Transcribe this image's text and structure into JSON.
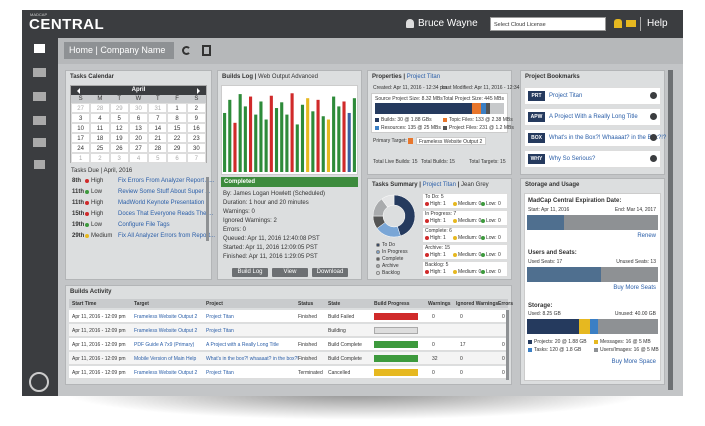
{
  "header": {
    "logo_small": "MADCAP",
    "logo": "CENTRAL",
    "user": "Bruce Wayne",
    "license_select": "Select Cloud License",
    "help": "Help"
  },
  "breadcrumb": {
    "home": "Home",
    "company": "Company Name"
  },
  "tasks_calendar": {
    "title": "Tasks Calendar",
    "month": "April",
    "weekdays": [
      "S",
      "M",
      "T",
      "W",
      "T",
      "F",
      "S"
    ],
    "days": [
      [
        27,
        28,
        29,
        30,
        31,
        1,
        2
      ],
      [
        3,
        4,
        5,
        6,
        7,
        8,
        9
      ],
      [
        10,
        11,
        12,
        13,
        14,
        15,
        16
      ],
      [
        17,
        18,
        19,
        20,
        21,
        22,
        23
      ],
      [
        24,
        25,
        26,
        27,
        28,
        29,
        30
      ],
      [
        1,
        2,
        3,
        4,
        5,
        6,
        7
      ]
    ],
    "tasks_due": "Tasks Due | April, 2016",
    "tasks": [
      {
        "day": "8th",
        "priority": "High",
        "color": "#d02a2a",
        "text": "Fix Errors From Analyzer Report A..."
      },
      {
        "day": "11th",
        "priority": "Low",
        "color": "#3d9a3d",
        "text": "Review Some Stuff About Super ..."
      },
      {
        "day": "11th",
        "priority": "High",
        "color": "#d02a2a",
        "text": "MadWorld Keynote Presentation"
      },
      {
        "day": "15th",
        "priority": "High",
        "color": "#d02a2a",
        "text": "Doces That Everyone Reads The ..."
      },
      {
        "day": "19th",
        "priority": "Low",
        "color": "#3d9a3d",
        "text": "Configure File Tags"
      },
      {
        "day": "29th",
        "priority": "Medium",
        "color": "#e6b820",
        "text": "Fix All Analyzer Errors from Report..."
      }
    ]
  },
  "builds_log": {
    "title": "Builds Log",
    "target": "Web Output Advanced",
    "chart": {
      "ylim": [
        0,
        100
      ],
      "values": [
        72,
        88,
        60,
        95,
        80,
        92,
        70,
        86,
        64,
        93,
        78,
        85,
        70,
        96,
        58,
        82,
        90,
        74,
        88,
        68,
        64,
        92,
        80,
        86,
        72,
        90
      ],
      "colors": [
        "#2e8b3a",
        "#2e8b3a",
        "#d02a2a",
        "#2e8b3a",
        "#2e8b3a",
        "#d02a2a",
        "#2e8b3a",
        "#2e8b3a",
        "#2e8b3a",
        "#d02a2a",
        "#2e8b3a",
        "#2e8b3a",
        "#2e8b3a",
        "#d02a2a",
        "#2e8b3a",
        "#2e8b3a",
        "#e6b820",
        "#2e8b3a",
        "#d02a2a",
        "#2e8b3a",
        "#e6b820",
        "#2e8b3a",
        "#2e8b3a",
        "#d02a2a",
        "#3a5fa0",
        "#2e8b3a"
      ]
    },
    "status": "Completed",
    "details": [
      "By: James Logan Howlett (Scheduled)",
      "Duration: 1 hour and 20 minutes",
      "Warnings: 0",
      "Ignored Warnings: 2",
      "Errors: 0",
      "Queued: Apr 11, 2016 12:40:08 PST",
      "Started: Apr 11, 2016 12:09:05 PST",
      "Finished: Apr 11, 2016 1:29:05 PST"
    ],
    "buttons": [
      "Build Log",
      "View",
      "Download"
    ]
  },
  "properties": {
    "title": "Properties",
    "project": "Project Titan",
    "created": "Created: Apr 11, 2016 - 12:34 pm",
    "modified": "Last Modified: Apr 11, 2016 - 12:34 pm",
    "source_size": "Source Project Size: 8.32 MBs",
    "total_size": "Total Project Size: 445 MBs",
    "bar": [
      {
        "value": 75,
        "color": "#253a5e"
      },
      {
        "value": 7,
        "color": "#e8762c"
      },
      {
        "value": 4,
        "color": "#3b7fc4"
      },
      {
        "value": 3,
        "color": "#555"
      },
      {
        "value": 11,
        "color": "#c7c9cb"
      }
    ],
    "legend": [
      "Builds: 30 @ 1.88 GBs",
      "Topic Files: 133 @ 2.38 MBs",
      "Resources: 135 @ 25 MBs",
      "Project Files: 231 @ 1.2 MBs"
    ],
    "primary_label": "Primary Target:",
    "primary_target": "Frameless Website Output 2",
    "totals": [
      "Total Live Builds: 15",
      "Total Builds: 15",
      "Total Targets: 15"
    ]
  },
  "tasks_summary": {
    "title": "Tasks Summary",
    "project": "Project Titan",
    "user": "Jean Grey",
    "donut": [
      {
        "value": 45,
        "color": "#253a5e"
      },
      {
        "value": 20,
        "color": "#7aa6d6"
      },
      {
        "value": 10,
        "color": "#555"
      },
      {
        "value": 15,
        "color": "#a9abad"
      },
      {
        "value": 10,
        "color": "#e4e5e6"
      }
    ],
    "legend": [
      "To Do",
      "In Progress",
      "Complete",
      "Archive",
      "Backlog"
    ],
    "groups": [
      {
        "name": "To Do: 5",
        "counts": [
          "High: 1",
          "Medium: 0",
          "Low: 0"
        ]
      },
      {
        "name": "In Progress: 7",
        "counts": [
          "High: 1",
          "Medium: 0",
          "Low: 0"
        ]
      },
      {
        "name": "Complete: 6",
        "counts": [
          "High: 1",
          "Medium: 0",
          "Low: 0"
        ]
      },
      {
        "name": "Archive: 15",
        "counts": [
          "High: 1",
          "Medium: 0",
          "Low: 0"
        ]
      },
      {
        "name": "Backlog: 5",
        "counts": [
          "High: 1",
          "Medium: 0",
          "Low: 0"
        ]
      }
    ]
  },
  "bookmarks": {
    "title": "Project Bookmarks",
    "items": [
      {
        "code": "PRT",
        "name": "Project Titan"
      },
      {
        "code": "APW",
        "name": "A Project With a Really Long Title"
      },
      {
        "code": "BOX",
        "name": "What's in the Box?! Whaaaat? in the Box?!?"
      },
      {
        "code": "WHY",
        "name": "Why So Serious?"
      }
    ]
  },
  "storage": {
    "title": "Storage and Usage",
    "expiration": "MadCap Central Expiration Date:",
    "start": "Start: Apr 11, 2016",
    "end": "End: Mar 14, 2017",
    "exp_bar": [
      28,
      72
    ],
    "renew": "Renew",
    "seats": "Users and Seats:",
    "used_seats": "Used Seats: 17",
    "unused_seats": "Unused Seats: 13",
    "seat_bar": [
      17,
      13
    ],
    "buy_seats": "Buy More Seats",
    "storage_label": "Storage:",
    "used": "Used: 8.25 GB",
    "unused": "Unused: 40.00 GB",
    "storage_bar": [
      {
        "value": 40,
        "color": "#253a5e"
      },
      {
        "value": 8,
        "color": "#e6b820"
      },
      {
        "value": 6,
        "color": "#3b7fc4"
      },
      {
        "value": 46,
        "color": "#8e9194"
      }
    ],
    "legend": [
      "Projects: 20 @ 1.88 GB",
      "Messages: 16 @ 5 MB",
      "Tasks: 120 @ 1.8 GB",
      "Users/Images: 16 @ 5 MB"
    ],
    "buy_space": "Buy More Space"
  },
  "activity": {
    "title": "Builds Activity",
    "columns": [
      "Start Time",
      "Target",
      "Project",
      "Status",
      "State",
      "Build Progress",
      "Warnings",
      "Ignored Warnings",
      "Errors"
    ],
    "progress_lim": [
      0,
      100
    ],
    "rows": [
      {
        "start": "Apr 11, 2016 - 12:09 pm",
        "target": "Frameless Website Output 2",
        "project": "Project Titan",
        "status": "Finished",
        "state": "Build Failed",
        "progress": 100,
        "color": "#d02a2a",
        "warnings": "0",
        "ignored": "0",
        "errors": "0"
      },
      {
        "start": "Apr 11, 2016 - 12:09 pm",
        "target": "Frameless Website Output 2",
        "project": "Project Titan",
        "status": "",
        "state": "Building",
        "progress": 0,
        "color": "#3d9a3d",
        "warnings": "",
        "ignored": "",
        "errors": ""
      },
      {
        "start": "Apr 11, 2016 - 12:09 pm",
        "target": "PDF Guide A 7x9 (Primary)",
        "project": "A Project with a Really Long Title",
        "status": "Finished",
        "state": "Build Complete",
        "progress": 100,
        "color": "#3d9a3d",
        "warnings": "0",
        "ignored": "17",
        "errors": "0"
      },
      {
        "start": "Apr 11, 2016 - 12:09 pm",
        "target": "Mobile Version of Main Help",
        "project": "What's in the box?! whaaaat? in the box?!",
        "status": "Finished",
        "state": "Build Complete",
        "progress": 100,
        "color": "#3d9a3d",
        "warnings": "32",
        "ignored": "0",
        "errors": "0"
      },
      {
        "start": "Apr 11, 2016 - 12:09 pm",
        "target": "Frameless Website Output 2",
        "project": "Project Titan",
        "status": "Terminated",
        "state": "Cancelled",
        "progress": 100,
        "color": "#e6b820",
        "warnings": "0",
        "ignored": "0",
        "errors": "0"
      }
    ]
  }
}
